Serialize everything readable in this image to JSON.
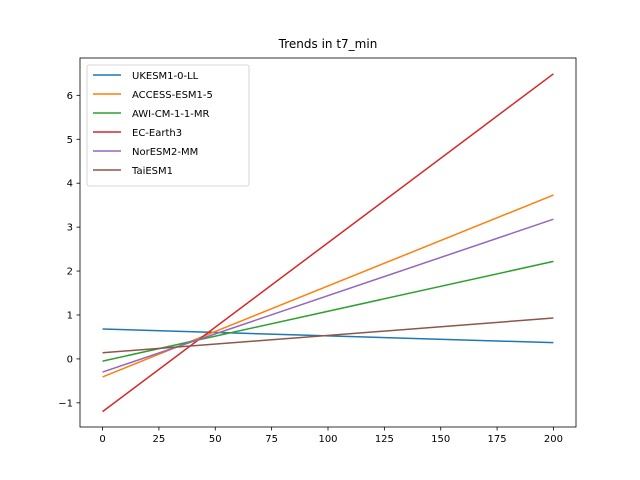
{
  "chart_data": {
    "type": "line",
    "title": "Trends in t7_min",
    "xlabel": "",
    "ylabel": "",
    "xlim": [
      -10,
      210
    ],
    "ylim": [
      -1.55,
      6.85
    ],
    "xticks": [
      0,
      25,
      50,
      75,
      100,
      125,
      150,
      175,
      200
    ],
    "yticks": [
      -1,
      0,
      1,
      2,
      3,
      4,
      5,
      6
    ],
    "grid": false,
    "legend_position": "top-left",
    "series": [
      {
        "name": "UKESM1-0-LL",
        "color": "#1f77b4",
        "x": [
          0,
          200
        ],
        "y": [
          0.68,
          0.37
        ]
      },
      {
        "name": "ACCESS-ESM1-5",
        "color": "#ff7f0e",
        "x": [
          0,
          200
        ],
        "y": [
          -0.41,
          3.73
        ]
      },
      {
        "name": "AWI-CM-1-1-MR",
        "color": "#2ca02c",
        "x": [
          0,
          200
        ],
        "y": [
          -0.05,
          2.22
        ]
      },
      {
        "name": "EC-Earth3",
        "color": "#d62728",
        "x": [
          0,
          200
        ],
        "y": [
          -1.2,
          6.49
        ]
      },
      {
        "name": "NorESM2-MM",
        "color": "#9467bd",
        "x": [
          0,
          200
        ],
        "y": [
          -0.3,
          3.18
        ]
      },
      {
        "name": "TaiESM1",
        "color": "#8c564b",
        "x": [
          0,
          200
        ],
        "y": [
          0.14,
          0.93
        ]
      }
    ]
  }
}
